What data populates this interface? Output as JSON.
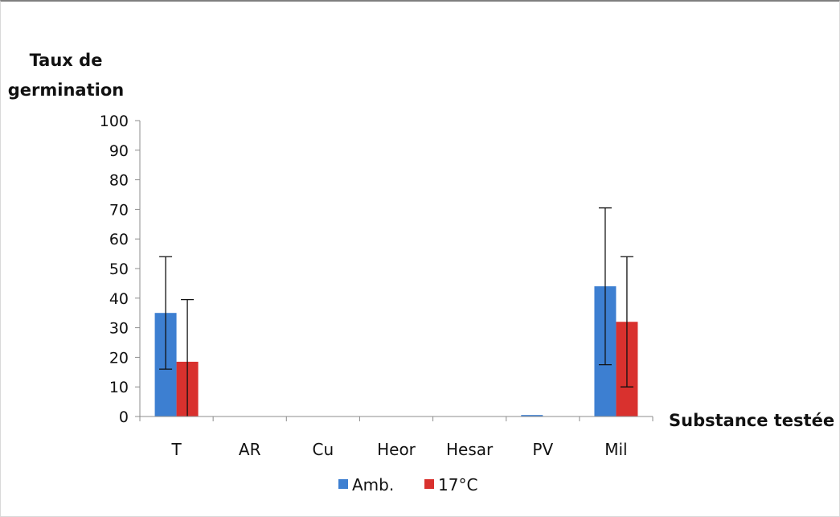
{
  "chart_data": {
    "type": "bar",
    "ylabel_lines": [
      "Taux de",
      "germination"
    ],
    "xlabel": "Substance testée",
    "ylim": [
      0,
      100
    ],
    "yticks": [
      0,
      10,
      20,
      30,
      40,
      50,
      60,
      70,
      80,
      90,
      100
    ],
    "categories": [
      "T",
      "AR",
      "Cu",
      "Heor",
      "Hesar",
      "PV",
      "Mil"
    ],
    "series": [
      {
        "name": "Amb.",
        "color": "#3d7fd1",
        "values": [
          35,
          0,
          0,
          0,
          0,
          0.5,
          44
        ],
        "error": [
          19,
          0,
          0,
          0,
          0,
          0,
          26.5
        ]
      },
      {
        "name": "17°C",
        "color": "#d9312e",
        "values": [
          18.5,
          0,
          0,
          0,
          0,
          0,
          32
        ],
        "error": [
          21,
          0,
          0,
          0,
          0,
          0,
          22
        ]
      }
    ],
    "legend_position": "bottom"
  }
}
